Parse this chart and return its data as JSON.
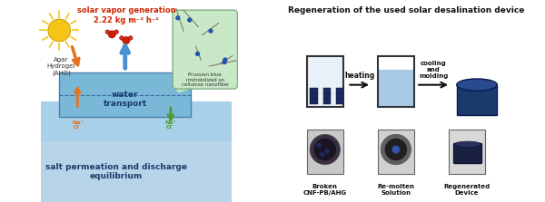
{
  "title_right": "Regeneration of the used solar desalination device",
  "solar_vapor_line1": "solar vapor generation",
  "solar_vapor_line2": "2.22 kg m⁻² h⁻¹",
  "water_transport": "water\ntransport",
  "salt_text": "salt permeation and discharge\nequilibrium",
  "agar_text": "Agar\nHydrogel\n(AHG)",
  "prussian_text": "Prussian blue\nimmobilized on\ncellulose nanofiber",
  "heating_label": "heating",
  "cooling_label": "cooling\nand\nmolding",
  "broken_label": "Broken\nCNF-PB/AHG",
  "remolten_label": "Re-molten\nSolution",
  "regenerated_label": "Regenerated\nDevice",
  "nacl_left": "Na⁺\nCl⁻",
  "nacl_right": "Na⁺\nCl⁻",
  "bg_color": "#ffffff",
  "water_bg": "#a8d0e8",
  "water_top": "#7ab8d8",
  "material_color": "#5b9abf",
  "salt_bg": "#b8d4e8",
  "speech_bubble_color": "#c8e8c8",
  "sun_color": "#f5c518",
  "orange_arrow_color": "#e87020",
  "green_arrow_color": "#4a9a30",
  "blue_arrow_color": "#4a90d0",
  "red_color": "#cc2200",
  "dark_blue": "#1a3a6e",
  "navy_blue": "#1a2a5e",
  "light_blue_liquid": "#a8c8e8",
  "beaker_color": "#333333"
}
